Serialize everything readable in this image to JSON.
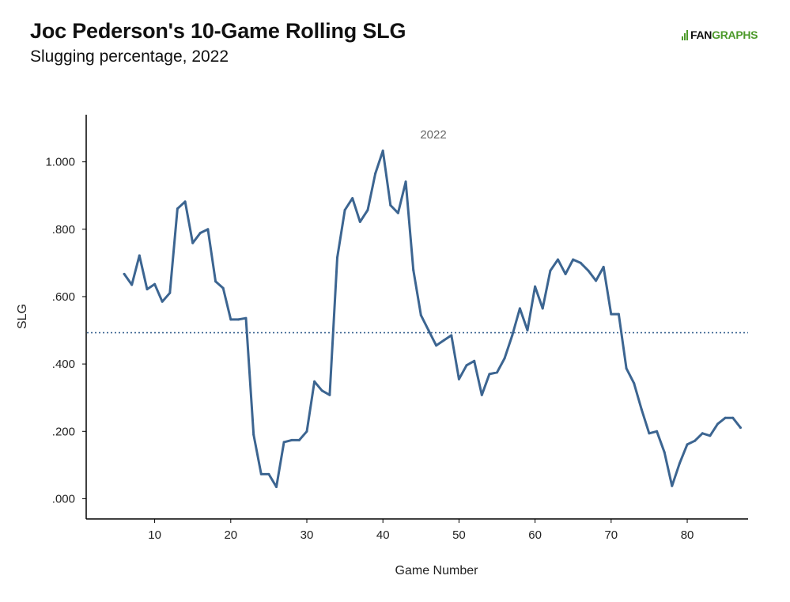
{
  "header": {
    "title": "Joc Pederson's 10-Game Rolling SLG",
    "subtitle": "Slugging percentage, 2022",
    "logo_fan": "FAN",
    "logo_graphs": "GRAPHS"
  },
  "chart_data": {
    "type": "line",
    "title": "Joc Pederson's 10-Game Rolling SLG",
    "subtitle": "Slugging percentage, 2022",
    "xlabel": "Game Number",
    "ylabel": "SLG",
    "annotation": "2022",
    "xlim": [
      1,
      88
    ],
    "ylim": [
      -0.06,
      1.14
    ],
    "xticks": [
      10,
      20,
      30,
      40,
      50,
      60,
      70,
      80
    ],
    "yticks": [
      0,
      0.2,
      0.4,
      0.6,
      0.8,
      1.0
    ],
    "ytick_labels": [
      ".000",
      ".200",
      ".400",
      ".600",
      ".800",
      "1.000"
    ],
    "reference_line": 0.493,
    "line_color": "#3c6591",
    "grid": false,
    "legend": "none",
    "series": [
      {
        "x": [
          6,
          7,
          8,
          9,
          10,
          11,
          12,
          13,
          14,
          15,
          16,
          17,
          18,
          19,
          20,
          21,
          22,
          23,
          24,
          25,
          26,
          27,
          28,
          29,
          30,
          31,
          32,
          33,
          34,
          35,
          36,
          37,
          38,
          39,
          40,
          41,
          42,
          43,
          44,
          45,
          46,
          47,
          48,
          49,
          50,
          51,
          52,
          53,
          54,
          55,
          56,
          57,
          58,
          59,
          60,
          61,
          62,
          63,
          64,
          65,
          66,
          67,
          68,
          69,
          70,
          71,
          72,
          73,
          74,
          75,
          76,
          77,
          78,
          79,
          80,
          81,
          82,
          83,
          84,
          85,
          86,
          87
        ],
        "values": [
          0.667,
          0.635,
          0.722,
          0.622,
          0.637,
          0.585,
          0.611,
          0.861,
          0.882,
          0.759,
          0.789,
          0.8,
          0.645,
          0.625,
          0.532,
          0.532,
          0.536,
          0.19,
          0.073,
          0.073,
          0.035,
          0.168,
          0.174,
          0.174,
          0.2,
          0.348,
          0.321,
          0.308,
          0.716,
          0.857,
          0.892,
          0.822,
          0.857,
          0.965,
          1.033,
          0.871,
          0.848,
          0.941,
          0.679,
          0.545,
          0.5,
          0.455,
          0.47,
          0.485,
          0.355,
          0.396,
          0.409,
          0.308,
          0.37,
          0.375,
          0.417,
          0.485,
          0.565,
          0.5,
          0.63,
          0.565,
          0.677,
          0.71,
          0.667,
          0.71,
          0.7,
          0.677,
          0.647,
          0.688,
          0.548,
          0.548,
          0.387,
          0.343,
          0.265,
          0.194,
          0.2,
          0.138,
          0.038,
          0.105,
          0.161,
          0.172,
          0.194,
          0.187,
          0.222,
          0.24,
          0.24,
          0.211
        ]
      }
    ]
  }
}
